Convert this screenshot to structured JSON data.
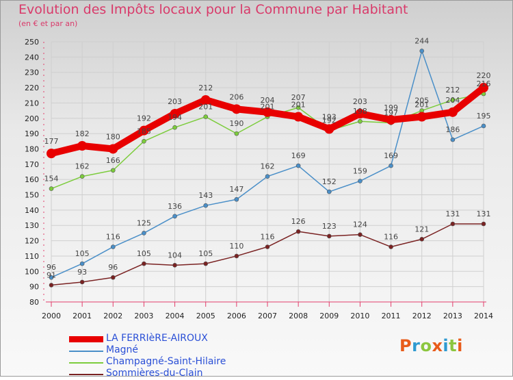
{
  "title": "Evolution des Impôts locaux pour la Commune par Habitant",
  "subtitle": "(en € et par an)",
  "logo": {
    "text": "Proxiti",
    "colors": [
      "#e85c1a",
      "#2e9ad0",
      "#8cc63f",
      "#e85c1a",
      "#2e9ad0",
      "#8cc63f",
      "#e85c1a"
    ]
  },
  "chart_data": {
    "type": "line",
    "title": "Evolution des Impôts locaux pour la Commune par Habitant",
    "subtitle": "(en € et par an)",
    "x": [
      "2000",
      "2001",
      "2002",
      "2003",
      "2004",
      "2005",
      "2006",
      "2007",
      "2008",
      "2009",
      "2010",
      "2011",
      "2012",
      "2013",
      "2014"
    ],
    "ylim": [
      80,
      250
    ],
    "yticks": [
      80,
      90,
      100,
      110,
      120,
      130,
      140,
      150,
      160,
      170,
      180,
      190,
      200,
      210,
      220,
      230,
      240,
      250
    ],
    "grid": true,
    "legend": "bottom-left",
    "series": [
      {
        "name": "LA FERRIèRE-AIROUX",
        "color": "#e80000",
        "values": [
          177,
          182,
          180,
          192,
          203,
          212,
          206,
          204,
          201,
          193,
          203,
          199,
          201,
          204,
          220
        ]
      },
      {
        "name": "Magné",
        "color": "#4a8fc8",
        "values": [
          96,
          105,
          116,
          125,
          136,
          143,
          147,
          162,
          169,
          152,
          159,
          169,
          244,
          186,
          195
        ]
      },
      {
        "name": "Champagné-Saint-Hilaire",
        "color": "#7ccc3c",
        "values": [
          154,
          162,
          166,
          185,
          194,
          201,
          190,
          201,
          207,
          192,
          198,
          197,
          205,
          212,
          216
        ]
      },
      {
        "name": "Sommières-du-Clain",
        "color": "#7a2222",
        "values": [
          91,
          93,
          96,
          105,
          104,
          105,
          110,
          116,
          126,
          123,
          124,
          116,
          121,
          131,
          131
        ]
      }
    ]
  }
}
